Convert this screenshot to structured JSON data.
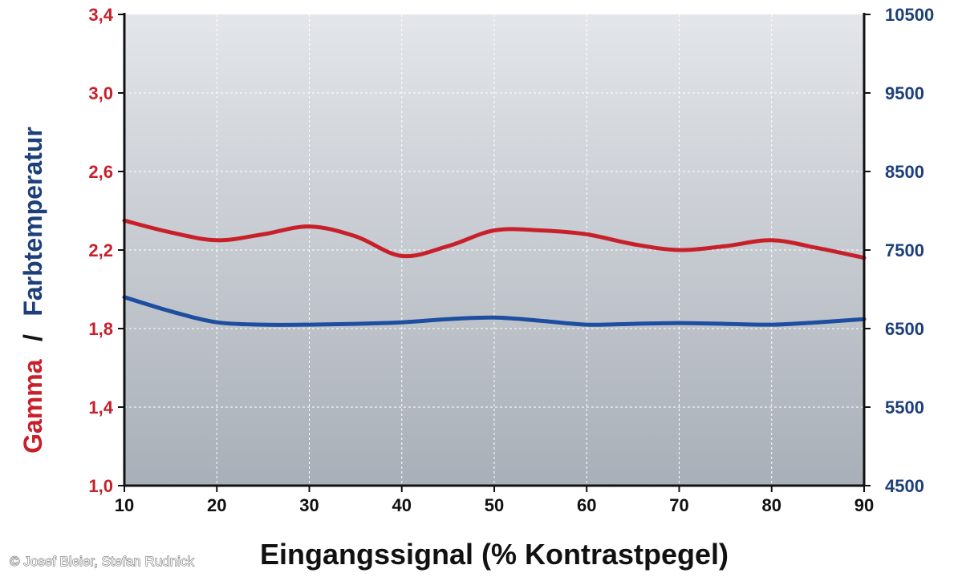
{
  "chart_data": {
    "type": "line",
    "xlabel": "Eingangssignal (% Kontrastpegel)",
    "ylabel_left": "Gamma",
    "ylabel_separator": "/",
    "ylabel_right": "Farbtemperatur",
    "x_ticks": [
      "10",
      "20",
      "30",
      "40",
      "50",
      "60",
      "70",
      "80",
      "90"
    ],
    "y_left_ticks": [
      "1,0",
      "1,4",
      "1,8",
      "2,2",
      "2,6",
      "3,0",
      "3,4"
    ],
    "y_right_ticks": [
      "4500",
      "5500",
      "6500",
      "7500",
      "8500",
      "9500",
      "10500"
    ],
    "xlim": [
      10,
      90
    ],
    "ylim_left": [
      1.0,
      3.4
    ],
    "ylim_right": [
      4500,
      10500
    ],
    "grid": true,
    "series": [
      {
        "name": "Gamma",
        "axis": "left",
        "color": "#c8202a",
        "x": [
          10,
          15,
          20,
          25,
          30,
          35,
          40,
          45,
          50,
          55,
          60,
          65,
          70,
          75,
          80,
          85,
          90
        ],
        "values": [
          2.35,
          2.29,
          2.25,
          2.28,
          2.32,
          2.27,
          2.17,
          2.22,
          2.3,
          2.3,
          2.28,
          2.23,
          2.2,
          2.22,
          2.25,
          2.21,
          2.16
        ]
      },
      {
        "name": "Farbtemperatur",
        "axis": "right",
        "color": "#1d4ea0",
        "x": [
          10,
          15,
          20,
          25,
          30,
          35,
          40,
          45,
          50,
          55,
          60,
          65,
          70,
          75,
          80,
          85,
          90
        ],
        "values": [
          6900,
          6720,
          6580,
          6550,
          6550,
          6560,
          6580,
          6620,
          6640,
          6600,
          6550,
          6560,
          6570,
          6560,
          6550,
          6580,
          6620
        ]
      }
    ]
  },
  "credit": "© Josef Bleier, Stefan Rudnick"
}
